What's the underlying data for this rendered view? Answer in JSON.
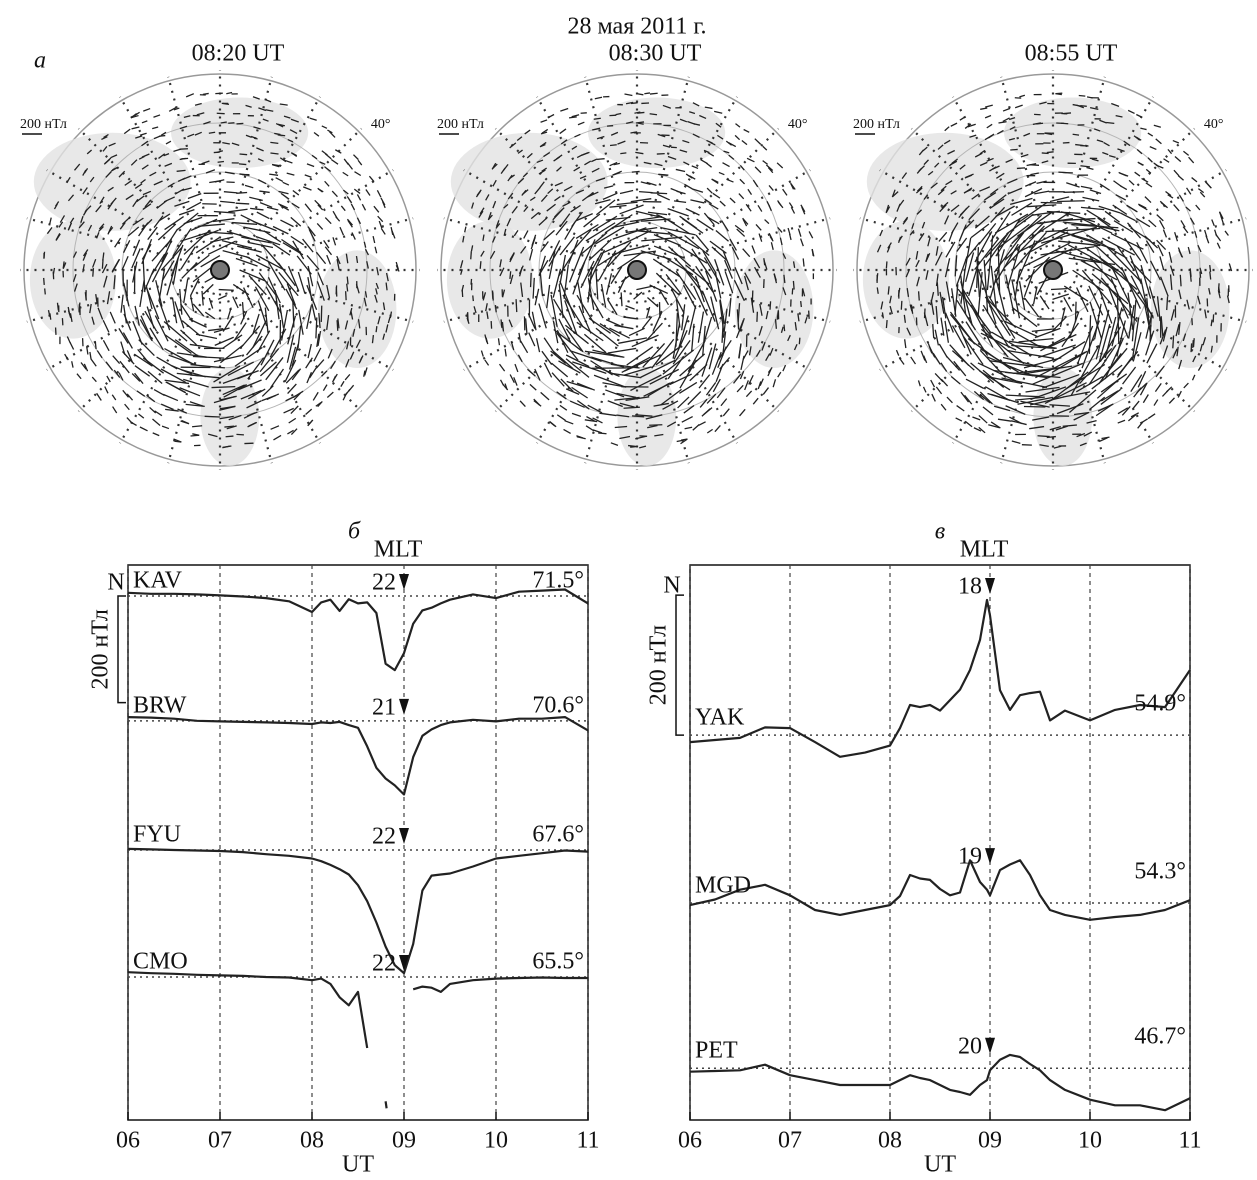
{
  "title": "28 мая 2011 г.",
  "maps": {
    "label": "а",
    "panels": [
      {
        "time": "08:20 UT",
        "scale_label": "200 нТл",
        "lat_label": "40°"
      },
      {
        "time": "08:30 UT",
        "scale_label": "200 нТл",
        "lat_label": "40°"
      },
      {
        "time": "08:55 UT",
        "scale_label": "200 нТл",
        "lat_label": "40°"
      }
    ]
  },
  "chart_data": [
    {
      "type": "line",
      "label": "б",
      "mlt_title": "MLT",
      "x_label": "UT",
      "north_label": "N",
      "scale_bar": {
        "value": 200,
        "label": "200 нТл"
      },
      "mlt_time": 9,
      "xlim": [
        6,
        11
      ],
      "xticks": [
        {
          "value": 6,
          "label": "06"
        },
        {
          "value": 7,
          "label": "07"
        },
        {
          "value": 8,
          "label": "08"
        },
        {
          "value": 9,
          "label": "09"
        },
        {
          "value": 10,
          "label": "10"
        },
        {
          "value": 11,
          "label": "11"
        }
      ],
      "ylim": [
        0,
        1040
      ],
      "x": [
        6,
        6.25,
        6.5,
        6.75,
        7,
        7.25,
        7.5,
        7.75,
        8,
        8.1,
        8.2,
        8.3,
        8.4,
        8.5,
        8.6,
        8.7,
        8.8,
        8.9,
        9,
        9.1,
        9.2,
        9.3,
        9.4,
        9.5,
        9.75,
        10,
        10.25,
        10.5,
        10.75,
        11
      ],
      "series": [
        {
          "name": "KAV",
          "lat": "71.5°",
          "mlt": "22",
          "baseline": 982,
          "color": "#222222",
          "values": [
            988,
            986,
            986,
            985,
            983,
            981,
            978,
            972,
            952,
            970,
            975,
            954,
            976,
            968,
            970,
            950,
            855,
            843,
            875,
            930,
            955,
            960,
            968,
            975,
            985,
            978,
            990,
            992,
            994,
            968
          ]
        },
        {
          "name": "BRW",
          "lat": "70.6°",
          "mlt": "21",
          "baseline": 748,
          "color": "#222222",
          "values": [
            755,
            754,
            752,
            748,
            747,
            746,
            745,
            744,
            742,
            745,
            744,
            746,
            740,
            735,
            700,
            660,
            640,
            627,
            610,
            680,
            720,
            732,
            740,
            745,
            750,
            747,
            752,
            752,
            755,
            730
          ]
        },
        {
          "name": "FYU",
          "lat": "67.6°",
          "mlt": "22",
          "baseline": 506,
          "color": "#222222",
          "values": [
            508,
            507,
            506,
            505,
            504,
            502,
            498,
            495,
            490,
            485,
            478,
            470,
            460,
            440,
            410,
            370,
            325,
            290,
            275,
            330,
            430,
            458,
            460,
            462,
            475,
            490,
            495,
            500,
            505,
            503
          ]
        },
        {
          "name": "CMO",
          "lat": "65.5°",
          "mlt": "22",
          "baseline": 268,
          "color": "#222222",
          "values": [
            277,
            275,
            274,
            272,
            271,
            270,
            268,
            267,
            262,
            265,
            255,
            230,
            215,
            240,
            135,
            null,
            35,
            null,
            null,
            245,
            250,
            248,
            240,
            255,
            262,
            265,
            266,
            267,
            266,
            266
          ]
        }
      ]
    },
    {
      "type": "line",
      "label": "в",
      "mlt_title": "MLT",
      "x_label": "UT",
      "north_label": "N",
      "scale_bar": {
        "value": 200,
        "label": "200 нТл"
      },
      "mlt_time": 9,
      "xlim": [
        6,
        11
      ],
      "xticks": [
        {
          "value": 6,
          "label": "06"
        },
        {
          "value": 7,
          "label": "07"
        },
        {
          "value": 8,
          "label": "08"
        },
        {
          "value": 9,
          "label": "09"
        },
        {
          "value": 10,
          "label": "10"
        },
        {
          "value": 11,
          "label": "11"
        }
      ],
      "ylim": [
        0,
        793
      ],
      "x": [
        6,
        6.25,
        6.5,
        6.75,
        7,
        7.25,
        7.5,
        7.75,
        8,
        8.1,
        8.2,
        8.3,
        8.4,
        8.5,
        8.6,
        8.7,
        8.8,
        8.9,
        8.97,
        9,
        9.1,
        9.2,
        9.3,
        9.4,
        9.5,
        9.6,
        9.75,
        10,
        10.25,
        10.5,
        10.75,
        11
      ],
      "series": [
        {
          "name": "YAK",
          "lat": "54.9°",
          "mlt": "18",
          "baseline": 550,
          "color": "#222222",
          "values": [
            540,
            543,
            546,
            561,
            560,
            540,
            519,
            525,
            535,
            560,
            593,
            590,
            593,
            585,
            600,
            615,
            643,
            686,
            743,
            721,
            614,
            586,
            607,
            610,
            612,
            571,
            585,
            571,
            586,
            593,
            590,
            643
          ]
        },
        {
          "name": "MGD",
          "lat": "54.3°",
          "mlt": "19",
          "baseline": 310,
          "color": "#222222",
          "values": [
            307,
            315,
            329,
            336,
            321,
            300,
            293,
            300,
            307,
            320,
            350,
            345,
            343,
            330,
            321,
            325,
            371,
            340,
            329,
            321,
            357,
            365,
            371,
            350,
            321,
            300,
            293,
            286,
            290,
            293,
            300,
            314
          ]
        },
        {
          "name": "PET",
          "lat": "46.7°",
          "mlt": "20",
          "baseline": 74,
          "color": "#222222",
          "values": [
            69,
            70,
            71,
            79,
            64,
            57,
            50,
            50,
            50,
            57,
            64,
            60,
            57,
            50,
            43,
            40,
            36,
            50,
            57,
            71,
            86,
            93,
            90,
            80,
            71,
            57,
            43,
            29,
            21,
            21,
            14,
            31
          ]
        }
      ]
    }
  ]
}
